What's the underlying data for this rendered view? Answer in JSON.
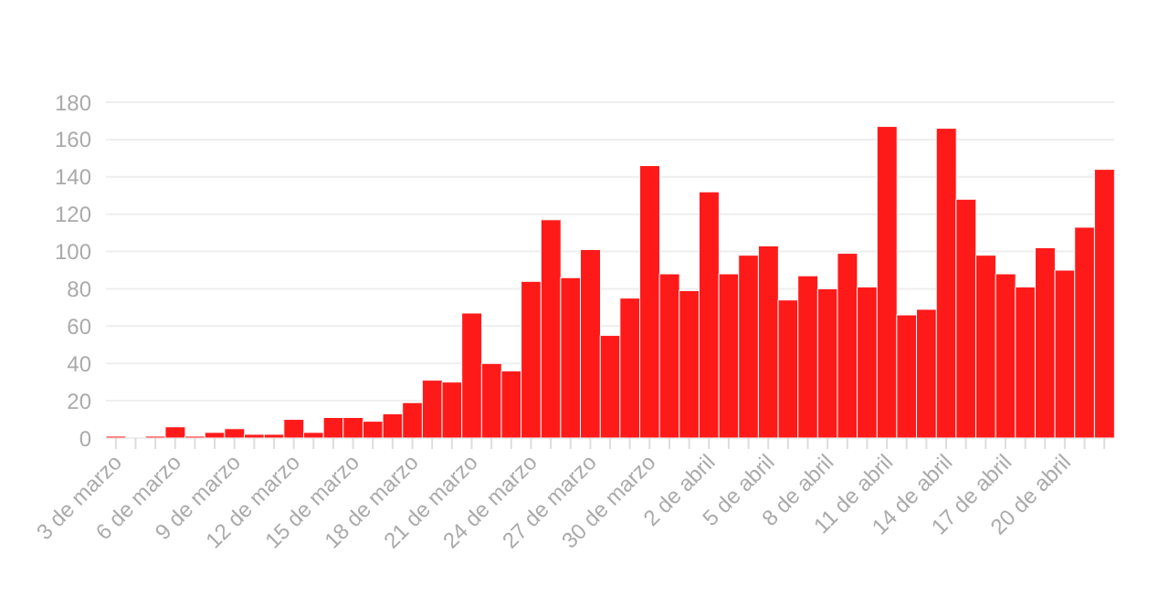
{
  "chart_data": {
    "type": "bar",
    "categories": [
      "3 de marzo",
      null,
      null,
      "6 de marzo",
      null,
      null,
      "9 de marzo",
      null,
      null,
      "12 de marzo",
      null,
      null,
      "15 de marzo",
      null,
      null,
      "18 de marzo",
      null,
      null,
      "21 de marzo",
      null,
      null,
      "24 de marzo",
      null,
      null,
      "27 de marzo",
      null,
      null,
      "30 de marzo",
      null,
      null,
      "2 de abril",
      null,
      null,
      "5 de abril",
      null,
      null,
      "8 de abril",
      null,
      null,
      "11 de abril",
      null,
      null,
      "14 de abril",
      null,
      null,
      "17 de abril",
      null,
      null,
      "20 de abril",
      null,
      null
    ],
    "values": [
      1,
      0,
      1,
      6,
      1,
      3,
      5,
      2,
      2,
      10,
      3,
      11,
      11,
      9,
      13,
      19,
      31,
      30,
      67,
      40,
      36,
      84,
      117,
      86,
      101,
      55,
      75,
      146,
      88,
      79,
      132,
      88,
      98,
      103,
      74,
      87,
      80,
      99,
      81,
      167,
      66,
      69,
      166,
      128,
      98,
      88,
      81,
      102,
      90,
      113,
      144
    ],
    "color": "#ff1a1a",
    "ylim": [
      0,
      180
    ],
    "yticks": [
      0,
      20,
      40,
      60,
      80,
      100,
      120,
      140,
      160,
      180
    ],
    "grid": "y"
  }
}
